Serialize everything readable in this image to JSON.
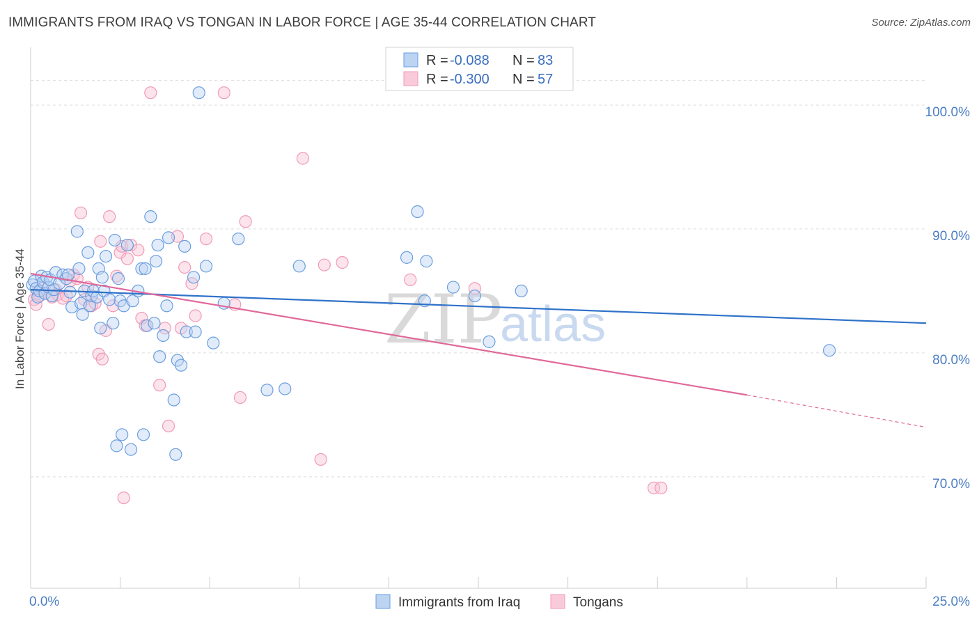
{
  "title": "IMMIGRANTS FROM IRAQ VS TONGAN IN LABOR FORCE | AGE 35-44 CORRELATION CHART",
  "source": "Source: ZipAtlas.com",
  "chart_data": {
    "type": "scatter",
    "ylabel": "In Labor Force | Age 35-44",
    "xlim": [
      0,
      25
    ],
    "ylim": [
      60,
      104
    ],
    "x_tick_labels": [
      "0.0%",
      "25.0%"
    ],
    "y_ticks": [
      {
        "value": 100,
        "label": "100.0%"
      },
      {
        "value": 90,
        "label": "90.0%"
      },
      {
        "value": 80,
        "label": "80.0%"
      },
      {
        "value": 70,
        "label": "70.0%"
      }
    ],
    "grid": true,
    "legend_position": "top-center",
    "watermark": {
      "zip": "ZIP",
      "atlas": "atlas"
    },
    "colors": {
      "iraq": "#6a9ee0",
      "tongan": "#f09ab6",
      "iraq_line": "#2f72c9",
      "tongan_line": "#e0689a"
    },
    "series": [
      {
        "name": "Immigrants from Iraq",
        "r_label": "R =",
        "r_value": "-0.088",
        "n_label": "N =",
        "n_value": "83",
        "trend": {
          "x0": 0,
          "y0": 84.1,
          "x1": 25,
          "y1": 81.4
        },
        "points": [
          [
            0.05,
            84.5
          ],
          [
            0.1,
            84.8
          ],
          [
            0.15,
            84.2
          ],
          [
            0.2,
            83.5
          ],
          [
            0.25,
            84.0
          ],
          [
            0.3,
            85.2
          ],
          [
            0.35,
            84.7
          ],
          [
            0.4,
            83.8
          ],
          [
            0.45,
            85.1
          ],
          [
            0.5,
            84.3
          ],
          [
            0.55,
            84.9
          ],
          [
            0.6,
            83.6
          ],
          [
            0.65,
            84.1
          ],
          [
            0.7,
            85.5
          ],
          [
            0.8,
            84.6
          ],
          [
            0.9,
            85.3
          ],
          [
            1.0,
            85.0
          ],
          [
            1.05,
            85.3
          ],
          [
            1.1,
            83.9
          ],
          [
            1.15,
            82.7
          ],
          [
            1.3,
            88.8
          ],
          [
            1.35,
            85.8
          ],
          [
            1.4,
            83.0
          ],
          [
            1.45,
            82.1
          ],
          [
            1.5,
            84.0
          ],
          [
            1.6,
            87.1
          ],
          [
            1.65,
            82.8
          ],
          [
            1.7,
            83.6
          ],
          [
            1.75,
            84.0
          ],
          [
            1.85,
            83.5
          ],
          [
            1.9,
            85.8
          ],
          [
            1.95,
            81.0
          ],
          [
            2.0,
            85.1
          ],
          [
            2.05,
            84.0
          ],
          [
            2.1,
            86.8
          ],
          [
            2.2,
            83.3
          ],
          [
            2.3,
            81.4
          ],
          [
            2.35,
            88.1
          ],
          [
            2.4,
            71.5
          ],
          [
            2.45,
            85.0
          ],
          [
            2.5,
            83.2
          ],
          [
            2.55,
            72.4
          ],
          [
            2.6,
            82.8
          ],
          [
            2.7,
            87.7
          ],
          [
            2.8,
            71.2
          ],
          [
            2.85,
            83.2
          ],
          [
            3.0,
            84.0
          ],
          [
            3.1,
            85.8
          ],
          [
            3.15,
            72.4
          ],
          [
            3.2,
            85.8
          ],
          [
            3.25,
            81.2
          ],
          [
            3.35,
            90.0
          ],
          [
            3.45,
            81.4
          ],
          [
            3.5,
            86.4
          ],
          [
            3.55,
            87.7
          ],
          [
            3.6,
            78.7
          ],
          [
            3.7,
            80.4
          ],
          [
            3.8,
            82.8
          ],
          [
            3.85,
            88.3
          ],
          [
            4.0,
            75.2
          ],
          [
            4.05,
            70.8
          ],
          [
            4.1,
            78.4
          ],
          [
            4.2,
            78.0
          ],
          [
            4.3,
            87.6
          ],
          [
            4.35,
            80.7
          ],
          [
            4.55,
            85.1
          ],
          [
            4.6,
            80.7
          ],
          [
            4.7,
            100.0
          ],
          [
            4.9,
            86.0
          ],
          [
            5.1,
            79.8
          ],
          [
            5.4,
            83.0
          ],
          [
            5.8,
            88.2
          ],
          [
            6.6,
            76.0
          ],
          [
            7.1,
            76.1
          ],
          [
            7.5,
            86.0
          ],
          [
            10.5,
            86.7
          ],
          [
            10.8,
            90.4
          ],
          [
            11.0,
            83.2
          ],
          [
            11.05,
            86.4
          ],
          [
            11.8,
            84.3
          ],
          [
            12.4,
            83.6
          ],
          [
            12.8,
            79.9
          ],
          [
            13.7,
            84.0
          ],
          [
            22.3,
            79.2
          ]
        ]
      },
      {
        "name": "Tongans",
        "r_label": "R =",
        "r_value": "-0.300",
        "n_label": "N =",
        "n_value": "57",
        "trend": {
          "x0": 0,
          "y0": 85.4,
          "x1": 20.0,
          "y1": 75.6,
          "dash_to_x": 25,
          "dash_to_y": 73.0
        },
        "points": [
          [
            0.1,
            83.3
          ],
          [
            0.15,
            82.9
          ],
          [
            0.2,
            84.0
          ],
          [
            0.25,
            83.6
          ],
          [
            0.3,
            84.2
          ],
          [
            0.4,
            83.8
          ],
          [
            0.5,
            81.3
          ],
          [
            0.6,
            83.5
          ],
          [
            0.7,
            84.1
          ],
          [
            0.75,
            83.7
          ],
          [
            0.9,
            83.4
          ],
          [
            1.0,
            83.6
          ],
          [
            1.1,
            84.8
          ],
          [
            1.2,
            85.3
          ],
          [
            1.3,
            85.0
          ],
          [
            1.4,
            90.3
          ],
          [
            1.5,
            83.3
          ],
          [
            1.6,
            84.3
          ],
          [
            1.7,
            82.8
          ],
          [
            1.8,
            83.0
          ],
          [
            1.9,
            78.9
          ],
          [
            1.95,
            88.0
          ],
          [
            2.0,
            78.5
          ],
          [
            2.1,
            80.8
          ],
          [
            2.2,
            90.0
          ],
          [
            2.3,
            82.8
          ],
          [
            2.4,
            85.2
          ],
          [
            2.5,
            87.1
          ],
          [
            2.55,
            87.6
          ],
          [
            2.6,
            67.3
          ],
          [
            2.7,
            86.6
          ],
          [
            2.8,
            87.7
          ],
          [
            3.0,
            87.3
          ],
          [
            3.1,
            81.8
          ],
          [
            3.2,
            81.2
          ],
          [
            3.35,
            100.0
          ],
          [
            3.6,
            76.4
          ],
          [
            3.75,
            81.0
          ],
          [
            3.85,
            73.1
          ],
          [
            4.1,
            88.4
          ],
          [
            4.2,
            81.0
          ],
          [
            4.3,
            85.9
          ],
          [
            4.5,
            84.6
          ],
          [
            4.6,
            82.0
          ],
          [
            4.9,
            88.2
          ],
          [
            5.7,
            82.9
          ],
          [
            5.85,
            75.4
          ],
          [
            6.0,
            89.6
          ],
          [
            5.4,
            100.0
          ],
          [
            7.6,
            94.7
          ],
          [
            8.1,
            70.4
          ],
          [
            8.2,
            86.1
          ],
          [
            8.7,
            86.3
          ],
          [
            10.6,
            84.9
          ],
          [
            12.4,
            84.2
          ],
          [
            17.4,
            68.1
          ],
          [
            17.6,
            68.1
          ]
        ]
      }
    ]
  }
}
